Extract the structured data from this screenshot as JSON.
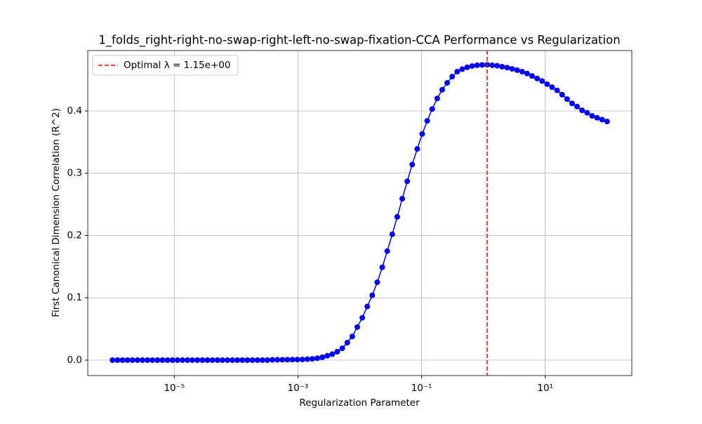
{
  "chart_data": {
    "type": "line",
    "title": "1_folds_right-right-no-swap-right-left-no-swap-fixation-CCA Performance vs Regularization",
    "xlabel": "Regularization Parameter",
    "ylabel": "First Canonical Dimension Correlation (R^2)",
    "log_x": true,
    "grid": true,
    "legend": "upper left",
    "color": "#0000ff",
    "x": [
      1e-06,
      1.205e-06,
      1.451e-06,
      1.748e-06,
      2.105e-06,
      2.535e-06,
      3.054e-06,
      3.678e-06,
      4.431e-06,
      5.337e-06,
      6.428e-06,
      7.743e-06,
      9.326e-06,
      1.123e-05,
      1.353e-05,
      1.63e-05,
      1.963e-05,
      2.364e-05,
      2.848e-05,
      3.43e-05,
      4.132e-05,
      4.977e-05,
      5.995e-05,
      7.221e-05,
      8.697e-05,
      0.0001048,
      0.0001262,
      0.000152,
      0.0001831,
      0.0002205,
      0.0002656,
      0.0003199,
      0.0003854,
      0.0004642,
      0.0005591,
      0.0006734,
      0.0008111,
      0.000977,
      0.001177,
      0.001418,
      0.001708,
      0.002057,
      0.002477,
      0.002984,
      0.003594,
      0.004329,
      0.005214,
      0.00628,
      0.007565,
      0.009112,
      0.01097,
      0.01322,
      0.01592,
      0.01918,
      0.0231,
      0.02783,
      0.03352,
      0.04037,
      0.04863,
      0.05857,
      0.07055,
      0.08498,
      0.1024,
      0.1233,
      0.1485,
      0.1789,
      0.2154,
      0.2595,
      0.3126,
      0.3765,
      0.4535,
      0.5462,
      0.6579,
      0.7925,
      0.9545,
      1.15,
      1.385,
      1.668,
      2.009,
      2.42,
      2.915,
      3.511,
      4.229,
      5.094,
      6.136,
      7.391,
      8.902,
      10.72,
      12.92,
      15.56,
      18.74,
      22.57,
      27.19,
      32.75,
      39.45,
      47.51,
      57.22,
      68.93,
      83.02,
      100
    ],
    "values": [
      0,
      0,
      0,
      0,
      0,
      0,
      0,
      0,
      0,
      0,
      0,
      0,
      0,
      0,
      0,
      0,
      0,
      0,
      0,
      0,
      0,
      0,
      0,
      0,
      0,
      0,
      0,
      0,
      0,
      0,
      0,
      0,
      0.0005,
      0.0005,
      0.0006,
      0.0007,
      0.0008,
      0.0009,
      0.001,
      0.0015,
      0.002,
      0.003,
      0.0045,
      0.007,
      0.0095,
      0.0135,
      0.019,
      0.028,
      0.038,
      0.053,
      0.068,
      0.086,
      0.104,
      0.125,
      0.149,
      0.175,
      0.202,
      0.23,
      0.259,
      0.287,
      0.314,
      0.339,
      0.363,
      0.384,
      0.403,
      0.42,
      0.434,
      0.445,
      0.455,
      0.463,
      0.467,
      0.47,
      0.472,
      0.4733,
      0.4738,
      0.474,
      0.4733,
      0.4725,
      0.471,
      0.4695,
      0.4675,
      0.4655,
      0.463,
      0.46,
      0.456,
      0.452,
      0.448,
      0.443,
      0.438,
      0.433,
      0.426,
      0.419,
      0.412,
      0.407,
      0.401,
      0.397,
      0.392,
      0.389,
      0.386,
      0.383
    ],
    "vline": {
      "x": 1.15,
      "label": "Optimal λ = 1.15e+00",
      "color": "#ff0000"
    },
    "xlim": [
      3.98e-07,
      251.2
    ],
    "ylim": [
      -0.0248,
      0.4969
    ],
    "xticks": [
      {
        "value": 1e-05,
        "label": "10⁻⁵"
      },
      {
        "value": 0.001,
        "label": "10⁻³"
      },
      {
        "value": 0.1,
        "label": "10⁻¹"
      },
      {
        "value": 10,
        "label": "10¹"
      }
    ],
    "yticks": [
      {
        "value": 0,
        "label": "0.0"
      },
      0.1,
      0.2,
      0.3,
      0.4
    ]
  }
}
